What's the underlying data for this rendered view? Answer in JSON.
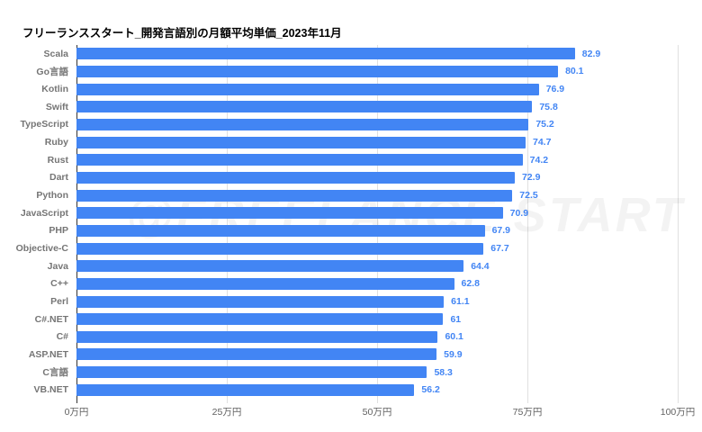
{
  "title": "フリーランススタート_開発言語別の月額平均単価_2023年11月",
  "watermark": "@FREELANCE START",
  "colors": {
    "bar": "#4285F4",
    "value_label": "#4285F4",
    "category_label": "#757575",
    "axis_label": "#616161",
    "axis_line": "#333333",
    "gridline": "#e0e0e0"
  },
  "chart_data": {
    "type": "bar",
    "orientation": "horizontal",
    "title": "フリーランススタート_開発言語別の月額平均単価_2023年11月",
    "categories": [
      "Scala",
      "Go言語",
      "Kotlin",
      "Swift",
      "TypeScript",
      "Ruby",
      "Rust",
      "Dart",
      "Python",
      "JavaScript",
      "PHP",
      "Objective-C",
      "Java",
      "C++",
      "Perl",
      "C#.NET",
      "C#",
      "ASP.NET",
      "C言語",
      "VB.NET"
    ],
    "values": [
      82.9,
      80.1,
      76.9,
      75.8,
      75.2,
      74.7,
      74.2,
      72.9,
      72.5,
      70.9,
      67.9,
      67.7,
      64.4,
      62.8,
      61.1,
      61,
      60.1,
      59.9,
      58.3,
      56.2
    ],
    "value_unit": "万円",
    "xlabel": "",
    "ylabel": "",
    "xlim": [
      0,
      100
    ],
    "x_ticks": [
      "0万円",
      "25万円",
      "50万円",
      "75万円",
      "100万円"
    ],
    "x_tick_values": [
      0,
      25,
      50,
      75,
      100
    ],
    "grid": true,
    "legend": "none"
  }
}
